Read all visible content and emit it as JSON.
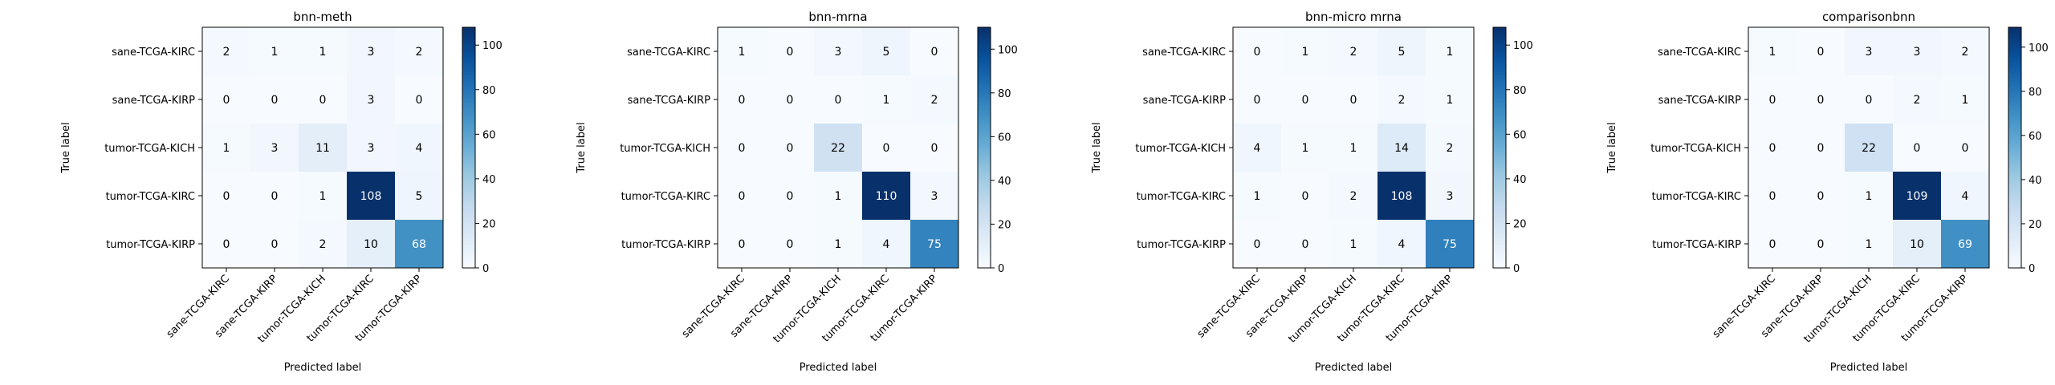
{
  "chart_data": [
    {
      "type": "heatmap",
      "title": "bnn-meth",
      "xlabel": "Predicted label",
      "ylabel": "True label",
      "classes": [
        "sane-TCGA-KIRC",
        "sane-TCGA-KIRP",
        "tumor-TCGA-KICH",
        "tumor-TCGA-KIRC",
        "tumor-TCGA-KIRP"
      ],
      "matrix": [
        [
          2,
          1,
          1,
          3,
          2
        ],
        [
          0,
          0,
          0,
          3,
          0
        ],
        [
          1,
          3,
          11,
          3,
          4
        ],
        [
          0,
          0,
          1,
          108,
          5
        ],
        [
          0,
          0,
          2,
          10,
          68
        ]
      ],
      "colorbar_max": 108,
      "colorbar_ticks": [
        0,
        20,
        40,
        60,
        80,
        100
      ]
    },
    {
      "type": "heatmap",
      "title": "bnn-mrna",
      "xlabel": "Predicted label",
      "ylabel": "True label",
      "classes": [
        "sane-TCGA-KIRC",
        "sane-TCGA-KIRP",
        "tumor-TCGA-KICH",
        "tumor-TCGA-KIRC",
        "tumor-TCGA-KIRP"
      ],
      "matrix": [
        [
          1,
          0,
          3,
          5,
          0
        ],
        [
          0,
          0,
          0,
          1,
          2
        ],
        [
          0,
          0,
          22,
          0,
          0
        ],
        [
          0,
          0,
          1,
          110,
          3
        ],
        [
          0,
          0,
          1,
          4,
          75
        ]
      ],
      "colorbar_max": 110,
      "colorbar_ticks": [
        0,
        20,
        40,
        60,
        80,
        100
      ]
    },
    {
      "type": "heatmap",
      "title": "bnn-micro mrna",
      "xlabel": "Predicted label",
      "ylabel": "True label",
      "classes": [
        "sane-TCGA-KIRC",
        "sane-TCGA-KIRP",
        "tumor-TCGA-KICH",
        "tumor-TCGA-KIRC",
        "tumor-TCGA-KIRP"
      ],
      "matrix": [
        [
          0,
          1,
          2,
          5,
          1
        ],
        [
          0,
          0,
          0,
          2,
          1
        ],
        [
          4,
          1,
          1,
          14,
          2
        ],
        [
          1,
          0,
          2,
          108,
          3
        ],
        [
          0,
          0,
          1,
          4,
          75
        ]
      ],
      "colorbar_max": 108,
      "colorbar_ticks": [
        0,
        20,
        40,
        60,
        80,
        100
      ]
    },
    {
      "type": "heatmap",
      "title": "comparisonbnn",
      "xlabel": "Predicted label",
      "ylabel": "True label",
      "classes": [
        "sane-TCGA-KIRC",
        "sane-TCGA-KIRP",
        "tumor-TCGA-KICH",
        "tumor-TCGA-KIRC",
        "tumor-TCGA-KIRP"
      ],
      "matrix": [
        [
          1,
          0,
          3,
          3,
          2
        ],
        [
          0,
          0,
          0,
          2,
          1
        ],
        [
          0,
          0,
          22,
          0,
          0
        ],
        [
          0,
          0,
          1,
          109,
          4
        ],
        [
          0,
          0,
          1,
          10,
          69
        ]
      ],
      "colorbar_max": 109,
      "colorbar_ticks": [
        0,
        20,
        40,
        60,
        80,
        100
      ]
    }
  ],
  "colormap": {
    "name": "Blues",
    "low": "#f7fbff",
    "high": "#08306b"
  }
}
